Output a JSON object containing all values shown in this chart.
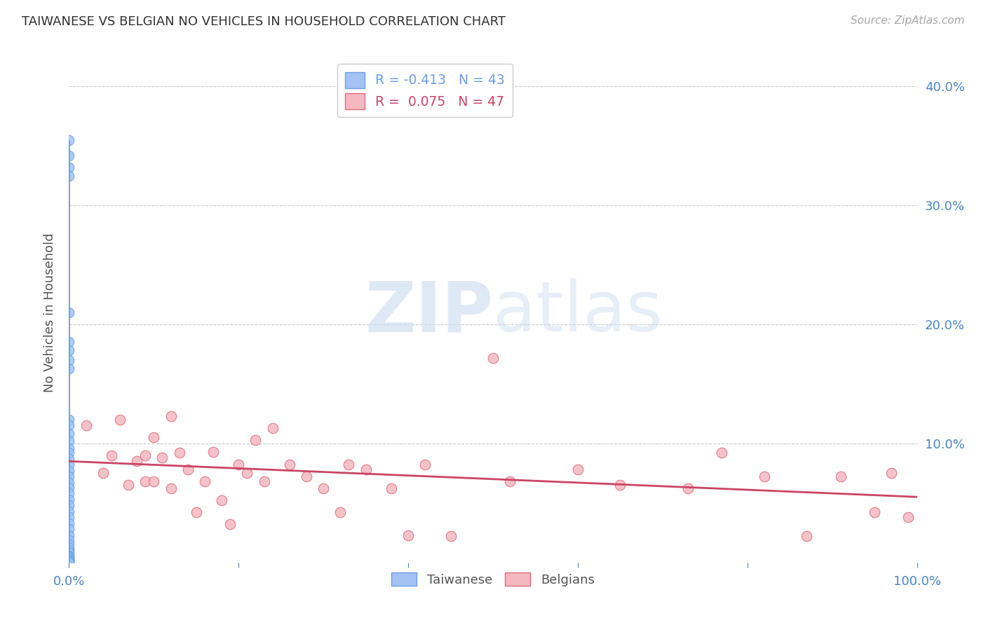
{
  "title": "TAIWANESE VS BELGIAN NO VEHICLES IN HOUSEHOLD CORRELATION CHART",
  "source": "Source: ZipAtlas.com",
  "ylabel": "No Vehicles in Household",
  "xlim": [
    0.0,
    1.0
  ],
  "ylim": [
    0.0,
    0.42
  ],
  "xticks": [
    0.0,
    0.2,
    0.4,
    0.6,
    0.8,
    1.0
  ],
  "xticklabels": [
    "0.0%",
    "",
    "",
    "",
    "",
    "100.0%"
  ],
  "yticks": [
    0.0,
    0.1,
    0.2,
    0.3,
    0.4
  ],
  "yticklabels": [
    "",
    "10.0%",
    "20.0%",
    "30.0%",
    "40.0%"
  ],
  "grid_yticks": [
    0.1,
    0.2,
    0.3,
    0.4
  ],
  "taiwanese_color": "#a4c2f4",
  "taiwanese_edge": "#6d9eeb",
  "belgian_color": "#f4b8c1",
  "belgian_edge": "#e06c7a",
  "trendline_taiwanese_color": "#6d9eeb",
  "trendline_belgian_color": "#cc4466",
  "legend_taiwanese_R": "-0.413",
  "legend_taiwanese_N": "43",
  "legend_belgian_R": "0.075",
  "legend_belgian_N": "47",
  "taiwanese_x": [
    0.0,
    0.0,
    0.0,
    0.0,
    0.0,
    0.0,
    0.0,
    0.0,
    0.0,
    0.0,
    0.0,
    0.0,
    0.0,
    0.0,
    0.0,
    0.0,
    0.0,
    0.0,
    0.0,
    0.0,
    0.0,
    0.0,
    0.0,
    0.0,
    0.0,
    0.0,
    0.0,
    0.0,
    0.0,
    0.0,
    0.0,
    0.0,
    0.0,
    0.0,
    0.0,
    0.0,
    0.0,
    0.0,
    0.0,
    0.0,
    0.0,
    0.0,
    0.0
  ],
  "taiwanese_y": [
    0.355,
    0.342,
    0.332,
    0.325,
    0.21,
    0.185,
    0.178,
    0.17,
    0.163,
    0.12,
    0.115,
    0.108,
    0.102,
    0.096,
    0.092,
    0.087,
    0.082,
    0.077,
    0.072,
    0.067,
    0.063,
    0.058,
    0.053,
    0.048,
    0.043,
    0.038,
    0.033,
    0.028,
    0.023,
    0.019,
    0.015,
    0.012,
    0.01,
    0.008,
    0.006,
    0.005,
    0.004,
    0.003,
    0.002,
    0.001,
    0.001,
    0.0,
    0.0
  ],
  "belgian_x": [
    0.02,
    0.04,
    0.05,
    0.06,
    0.07,
    0.08,
    0.09,
    0.09,
    0.1,
    0.1,
    0.11,
    0.12,
    0.12,
    0.13,
    0.14,
    0.15,
    0.16,
    0.17,
    0.18,
    0.19,
    0.2,
    0.21,
    0.22,
    0.23,
    0.24,
    0.26,
    0.28,
    0.3,
    0.32,
    0.33,
    0.35,
    0.38,
    0.4,
    0.42,
    0.45,
    0.5,
    0.52,
    0.6,
    0.65,
    0.73,
    0.77,
    0.82,
    0.87,
    0.91,
    0.95,
    0.97,
    0.99
  ],
  "belgian_y": [
    0.115,
    0.075,
    0.09,
    0.12,
    0.065,
    0.085,
    0.09,
    0.068,
    0.105,
    0.068,
    0.088,
    0.123,
    0.062,
    0.092,
    0.078,
    0.042,
    0.068,
    0.093,
    0.052,
    0.032,
    0.082,
    0.075,
    0.103,
    0.068,
    0.113,
    0.082,
    0.072,
    0.062,
    0.042,
    0.082,
    0.078,
    0.062,
    0.023,
    0.082,
    0.022,
    0.172,
    0.068,
    0.078,
    0.065,
    0.062,
    0.092,
    0.072,
    0.022,
    0.072,
    0.042,
    0.075,
    0.038
  ],
  "watermark_zip": "ZIP",
  "watermark_atlas": "atlas",
  "background_color": "#ffffff",
  "title_color": "#333333",
  "axis_color": "#4a86c8",
  "grid_color": "#cccccc",
  "bottom_legend_labels": [
    "Taiwanese",
    "Belgians"
  ]
}
